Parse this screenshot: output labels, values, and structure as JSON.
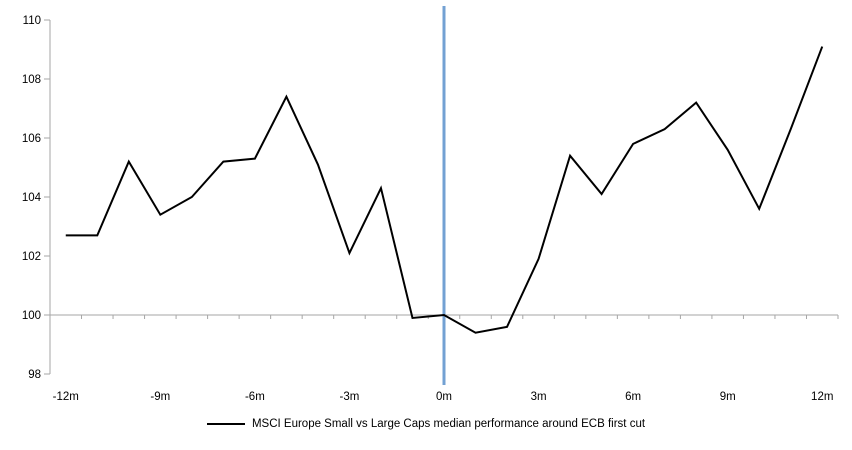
{
  "chart_data": {
    "type": "line",
    "title": "",
    "x": [
      -12,
      -11,
      -10,
      -9,
      -8,
      -7,
      -6,
      -5,
      -4,
      -3,
      -2,
      -1,
      0,
      1,
      2,
      3,
      4,
      5,
      6,
      7,
      8,
      9,
      10,
      11,
      12
    ],
    "series": [
      {
        "name": "MSCI Europe Small vs Large Caps median performance around ECB first cut",
        "color": "#000000",
        "values": [
          102.7,
          102.7,
          105.2,
          103.4,
          104.0,
          105.2,
          105.3,
          107.4,
          105.1,
          102.1,
          104.3,
          99.9,
          100.0,
          99.4,
          99.6,
          101.9,
          105.4,
          104.1,
          105.8,
          106.3,
          107.2,
          105.6,
          103.6,
          106.3,
          109.1
        ]
      }
    ],
    "x_axis": {
      "tick_labels": [
        {
          "month": -12,
          "label": "-12m"
        },
        {
          "month": -9,
          "label": "-9m"
        },
        {
          "month": -6,
          "label": "-6m"
        },
        {
          "month": -3,
          "label": "-3m"
        },
        {
          "month": 0,
          "label": "0m"
        },
        {
          "month": 3,
          "label": "3m"
        },
        {
          "month": 6,
          "label": "6m"
        },
        {
          "month": 9,
          "label": "9m"
        },
        {
          "month": 12,
          "label": "12m"
        }
      ],
      "axis_color": "#a6a6a6"
    },
    "y_axis": {
      "ticks": [
        98,
        100,
        102,
        104,
        106,
        108,
        110
      ],
      "range": [
        98,
        110
      ],
      "axis_color": "#a6a6a6"
    },
    "baseline": {
      "value": 100,
      "color": "#a6a6a6"
    },
    "event_line": {
      "at_month": 0,
      "color": "#73a1d3"
    },
    "grid": "off",
    "legend_position": "bottom"
  },
  "legend": {
    "label": "MSCI Europe Small vs Large Caps median performance around ECB first cut"
  }
}
